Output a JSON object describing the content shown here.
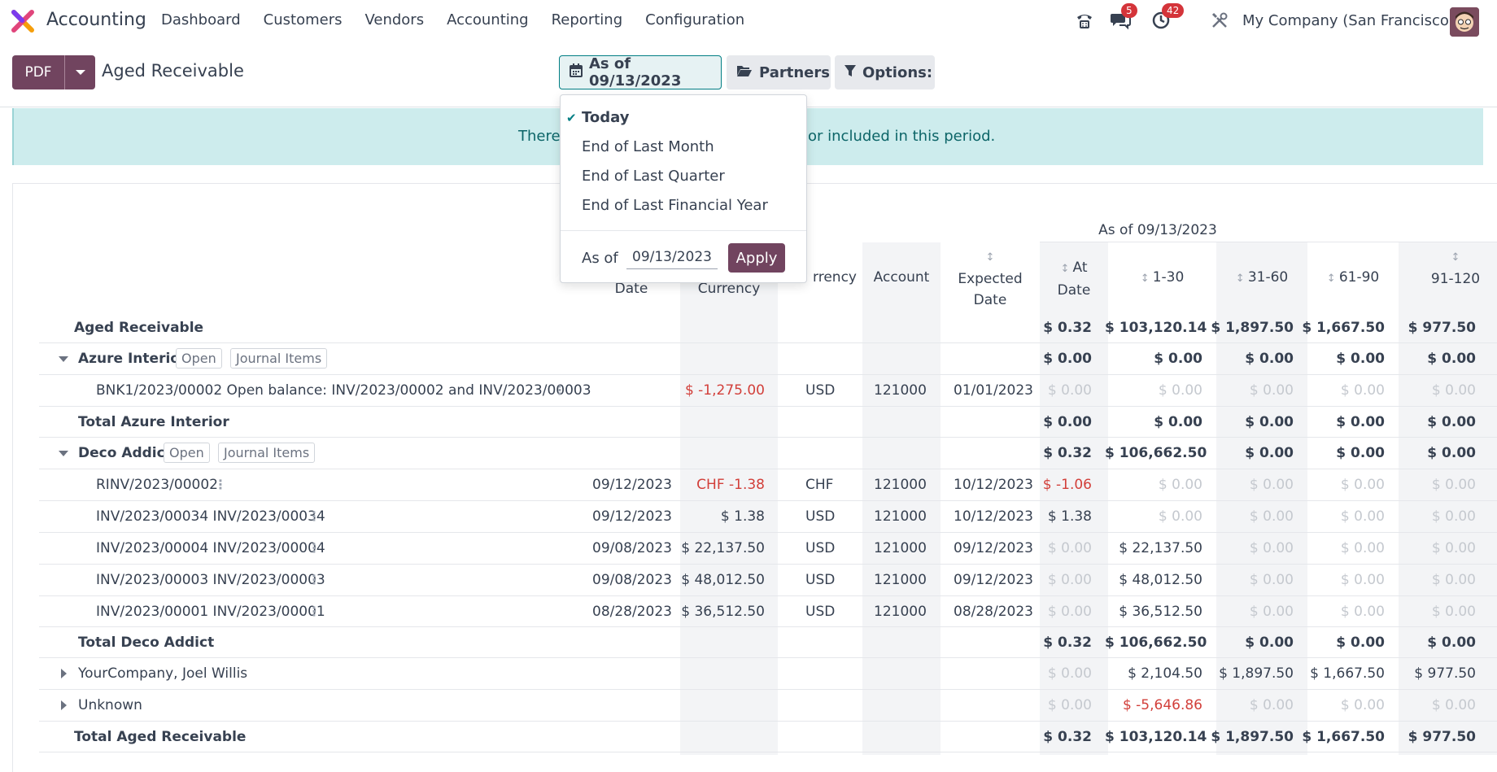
{
  "app": {
    "name": "Accounting"
  },
  "nav": [
    "Dashboard",
    "Customers",
    "Vendors",
    "Accounting",
    "Reporting",
    "Configuration"
  ],
  "systray": {
    "messages_badge": "5",
    "activities_badge": "42",
    "company": "My Company (San Francisco)"
  },
  "control": {
    "pdf_label": "PDF",
    "title": "Aged Receivable",
    "date_filter": "As of 09/13/2023",
    "partners_label": "Partners",
    "options_label": "Options:"
  },
  "alert": {
    "left": "There",
    "right": "or included in this period."
  },
  "dropdown": {
    "items": [
      "Today",
      "End of Last Month",
      "End of Last Quarter",
      "End of Last Financial Year"
    ],
    "as_of_label": "As of",
    "as_of_value": "09/13/2023",
    "apply_label": "Apply"
  },
  "table": {
    "period_header": "As of 09/13/2023",
    "headers": {
      "date": "Date",
      "amount_currency": "Currency",
      "currency": "rrency",
      "account": "Account",
      "expected_1": "Expected",
      "expected_2": "Date",
      "at_1": "At",
      "at_2": "Date",
      "p1": "1-30",
      "p2": "31-60",
      "p3": "61-90",
      "p4": "91-120"
    },
    "aged_receivable": {
      "label": "Aged Receivable",
      "at": "$ 0.32",
      "p1": "$ 103,120.14",
      "p2": "$ 1,897.50",
      "p3": "$ 1,667.50",
      "p4": "$ 977.50"
    },
    "azure": {
      "name": "Azure Interior",
      "open": "Open",
      "journal": "Journal Items",
      "at": "$ 0.00",
      "p1": "$ 0.00",
      "p2": "$ 0.00",
      "p3": "$ 0.00",
      "p4": "$ 0.00",
      "line": {
        "label": "BNK1/2023/00002 Open balance: INV/2023/00002 and INV/2023/00003",
        "amount": "$ -1,275.00",
        "currency": "USD",
        "account": "121000",
        "expected": "01/01/2023",
        "at": "$ 0.00",
        "p1": "$ 0.00",
        "p2": "$ 0.00",
        "p3": "$ 0.00",
        "p4": "$ 0.00"
      },
      "total": {
        "label": "Total Azure Interior",
        "at": "$ 0.00",
        "p1": "$ 0.00",
        "p2": "$ 0.00",
        "p3": "$ 0.00",
        "p4": "$ 0.00"
      }
    },
    "deco": {
      "name": "Deco Addict",
      "open": "Open",
      "journal": "Journal Items",
      "at": "$ 0.32",
      "p1": "$ 106,662.50",
      "p2": "$ 0.00",
      "p3": "$ 0.00",
      "p4": "$ 0.00",
      "lines": [
        {
          "label": "RINV/2023/00002",
          "date": "09/12/2023",
          "amount": "CHF -1.38",
          "currency": "CHF",
          "account": "121000",
          "expected": "10/12/2023",
          "at": "$ -1.06",
          "p1": "$ 0.00",
          "p2": "$ 0.00",
          "p3": "$ 0.00",
          "p4": "$ 0.00"
        },
        {
          "label": "INV/2023/00034 INV/2023/00034",
          "date": "09/12/2023",
          "amount": "$ 1.38",
          "currency": "USD",
          "account": "121000",
          "expected": "10/12/2023",
          "at": "$ 1.38",
          "p1": "$ 0.00",
          "p2": "$ 0.00",
          "p3": "$ 0.00",
          "p4": "$ 0.00"
        },
        {
          "label": "INV/2023/00004 INV/2023/00004",
          "date": "09/08/2023",
          "amount": "$ 22,137.50",
          "currency": "USD",
          "account": "121000",
          "expected": "09/12/2023",
          "at": "$ 0.00",
          "p1": "$ 22,137.50",
          "p2": "$ 0.00",
          "p3": "$ 0.00",
          "p4": "$ 0.00"
        },
        {
          "label": "INV/2023/00003 INV/2023/00003",
          "date": "09/08/2023",
          "amount": "$ 48,012.50",
          "currency": "USD",
          "account": "121000",
          "expected": "09/12/2023",
          "at": "$ 0.00",
          "p1": "$ 48,012.50",
          "p2": "$ 0.00",
          "p3": "$ 0.00",
          "p4": "$ 0.00"
        },
        {
          "label": "INV/2023/00001 INV/2023/00001",
          "date": "08/28/2023",
          "amount": "$ 36,512.50",
          "currency": "USD",
          "account": "121000",
          "expected": "08/28/2023",
          "at": "$ 0.00",
          "p1": "$ 36,512.50",
          "p2": "$ 0.00",
          "p3": "$ 0.00",
          "p4": "$ 0.00"
        }
      ],
      "total": {
        "label": "Total Deco Addict",
        "at": "$ 0.32",
        "p1": "$ 106,662.50",
        "p2": "$ 0.00",
        "p3": "$ 0.00",
        "p4": "$ 0.00"
      }
    },
    "yourcompany": {
      "name": "YourCompany, Joel Willis",
      "at": "$ 0.00",
      "p1": "$ 2,104.50",
      "p2": "$ 1,897.50",
      "p3": "$ 1,667.50",
      "p4": "$ 977.50"
    },
    "unknown": {
      "name": "Unknown",
      "at": "$ 0.00",
      "p1": "$ -5,646.86",
      "p2": "$ 0.00",
      "p3": "$ 0.00",
      "p4": "$ 0.00"
    },
    "grand_total": {
      "label": "Total Aged Receivable",
      "at": "$ 0.32",
      "p1": "$ 103,120.14",
      "p2": "$ 1,897.50",
      "p3": "$ 1,667.50",
      "p4": "$ 977.50"
    }
  }
}
